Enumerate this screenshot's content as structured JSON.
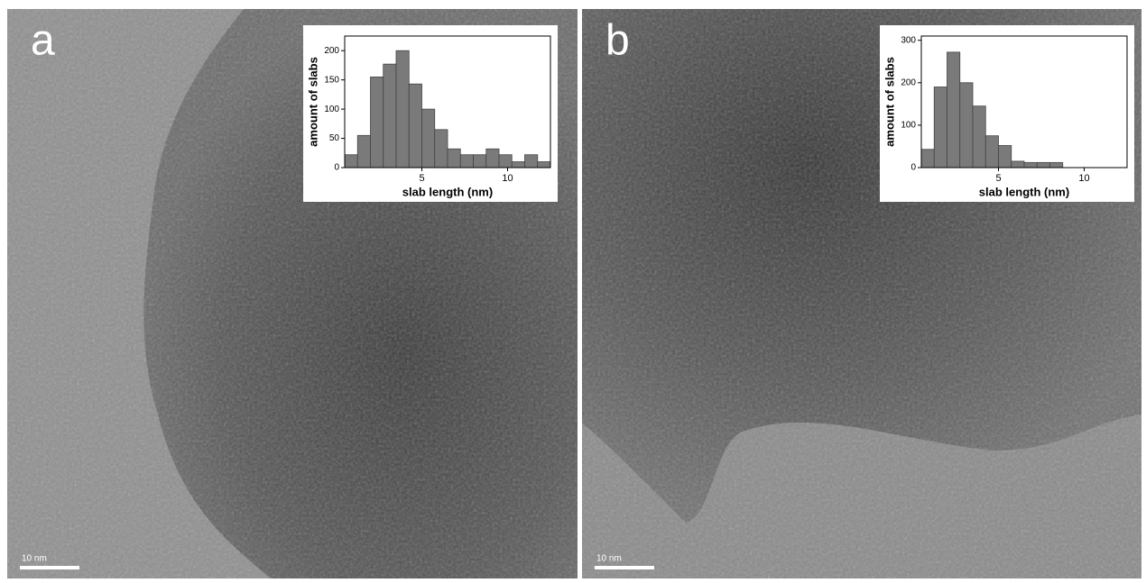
{
  "panels": [
    {
      "label": "a",
      "scale_bar": "10 nm"
    },
    {
      "label": "b",
      "scale_bar": "10 nm"
    }
  ],
  "chart_data": [
    {
      "type": "histogram",
      "x_label": "slab length (nm)",
      "y_label": "amount of slabs",
      "bins": [
        0.5,
        1.25,
        2.0,
        2.75,
        3.5,
        4.25,
        5.0,
        5.75,
        6.5,
        7.25,
        8.0,
        8.75,
        9.5,
        10.25,
        11.0,
        11.75,
        12.5
      ],
      "values": [
        22,
        55,
        155,
        177,
        200,
        143,
        100,
        65,
        32,
        22,
        22,
        32,
        22,
        10,
        22,
        10
      ],
      "xlim": [
        0.5,
        12.5
      ],
      "ylim": [
        0,
        225
      ],
      "xticks": [
        5,
        10
      ],
      "yticks": [
        0,
        50,
        100,
        150,
        200
      ],
      "color": "#7a7a7a"
    },
    {
      "type": "histogram",
      "x_label": "slab length (nm)",
      "y_label": "amount of slabs",
      "bins": [
        0.5,
        1.25,
        2.0,
        2.75,
        3.5,
        4.25,
        5.0,
        5.75,
        6.5,
        7.25,
        8.0,
        8.75
      ],
      "values": [
        43,
        190,
        272,
        200,
        145,
        75,
        52,
        15,
        12,
        12,
        12
      ],
      "xlim": [
        0.5,
        12.5
      ],
      "ylim": [
        0,
        310
      ],
      "xticks": [
        5,
        10
      ],
      "yticks": [
        0,
        100,
        200,
        300
      ],
      "color": "#7a7a7a"
    }
  ]
}
